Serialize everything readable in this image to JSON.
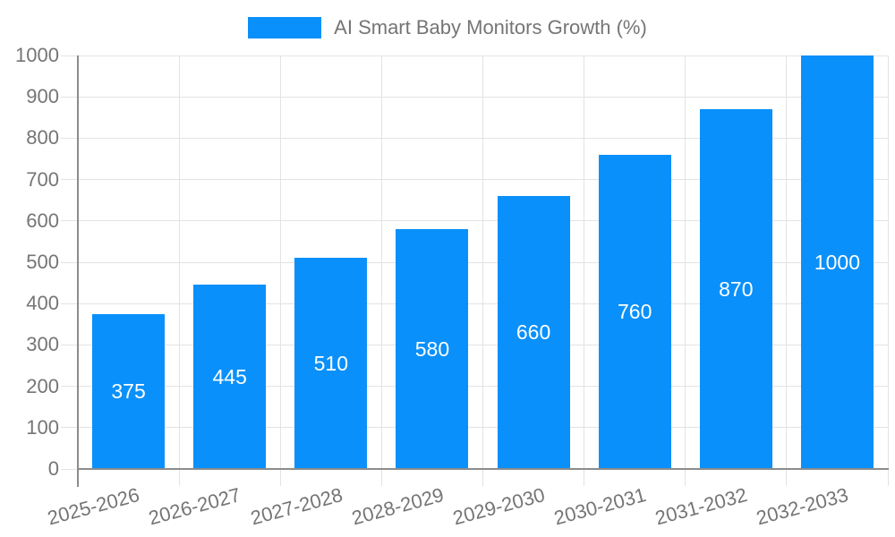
{
  "legend": {
    "label": "AI Smart Baby Monitors Growth (%)"
  },
  "colors": {
    "bar": "#0A90FA",
    "grid": "#E3E3E3",
    "axis": "#8C8C8C",
    "tick_label": "#757575",
    "legend_text": "#757575",
    "value_label": "#FFFFFF",
    "background": "#FFFFFF"
  },
  "chart_data": {
    "type": "bar",
    "title": "AI Smart Baby Monitors Growth (%)",
    "categories": [
      "2025-2026",
      "2026-2027",
      "2027-2028",
      "2028-2029",
      "2029-2030",
      "2030-2031",
      "2031-2032",
      "2032-2033"
    ],
    "values": [
      375,
      445,
      510,
      580,
      660,
      760,
      870,
      1000
    ],
    "bar_value_labels": [
      "375",
      "445",
      "510",
      "580",
      "660",
      "760",
      "870",
      "1000"
    ],
    "xlabel": "",
    "ylabel": "",
    "ylim": [
      0,
      1000
    ],
    "yticks": [
      0,
      100,
      200,
      300,
      400,
      500,
      600,
      700,
      800,
      900,
      1000
    ],
    "grid": "horizontal lines every 100, vertical lines at category boundaries",
    "legend_position": "top",
    "x_tick_rotation_deg": -15,
    "value_labels_position": "centered inside bars"
  }
}
